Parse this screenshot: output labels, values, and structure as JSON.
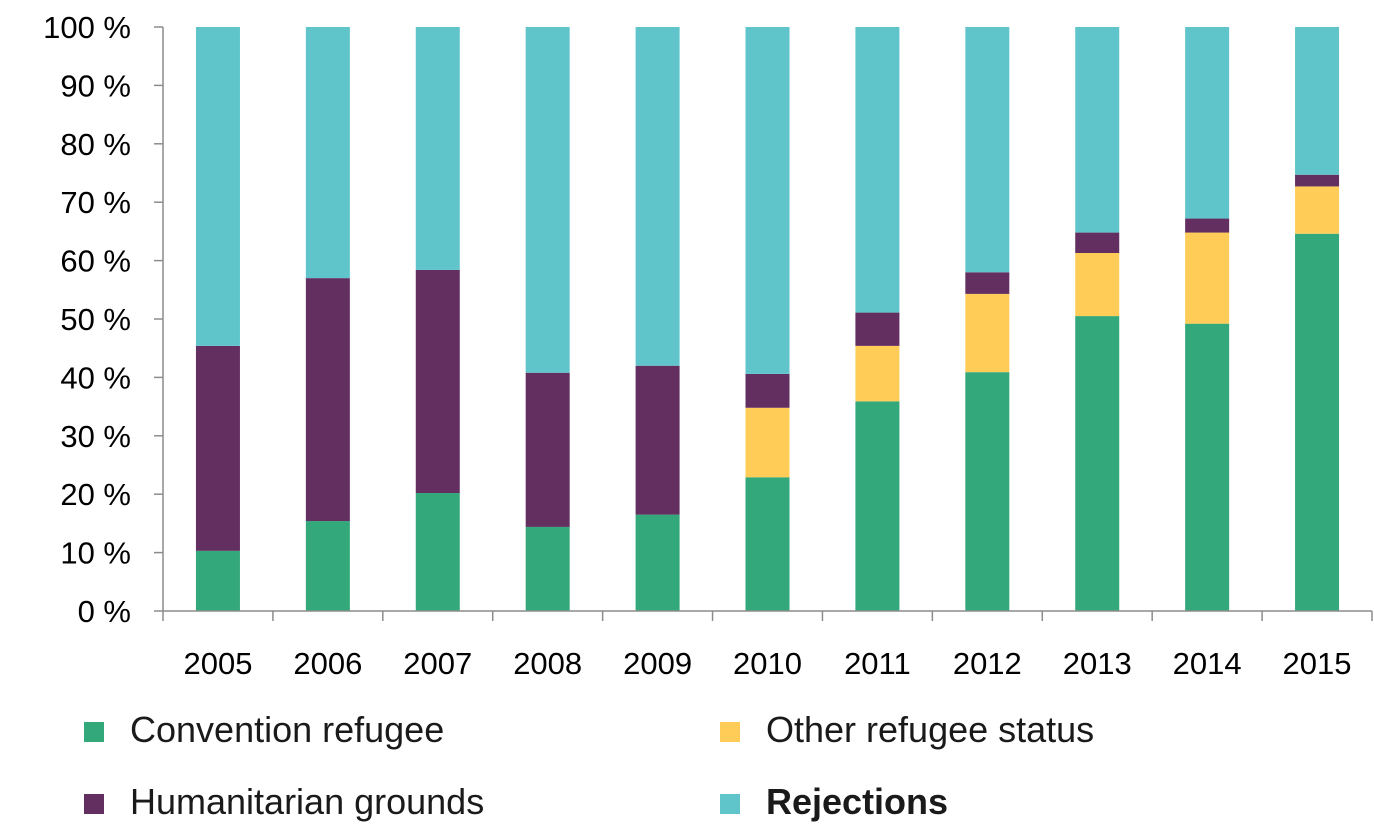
{
  "chart_data": {
    "type": "bar",
    "stacked": true,
    "percent_stacked": true,
    "categories": [
      "2005",
      "2006",
      "2007",
      "2008",
      "2009",
      "2010",
      "2011",
      "2012",
      "2013",
      "2014",
      "2015"
    ],
    "series": [
      {
        "name": "Convention refugee",
        "color": "#33a87a",
        "values": [
          10.3,
          15.4,
          20.2,
          14.4,
          16.5,
          22.9,
          35.9,
          40.9,
          50.5,
          49.2,
          64.6
        ]
      },
      {
        "name": "Other refugee status",
        "color": "#ffcd57",
        "values": [
          0,
          0,
          0,
          0,
          0,
          11.9,
          9.5,
          13.4,
          10.8,
          15.6,
          8.1
        ]
      },
      {
        "name": "Humanitarian grounds",
        "color": "#622f60",
        "values": [
          35.1,
          41.6,
          38.2,
          26.4,
          25.5,
          5.8,
          5.7,
          3.7,
          3.5,
          2.4,
          2.0
        ]
      },
      {
        "name": "Rejections",
        "color": "#5fc5cb",
        "values": [
          54.6,
          43.0,
          41.6,
          59.2,
          58.0,
          59.4,
          48.9,
          42.0,
          35.2,
          32.8,
          25.3
        ]
      }
    ],
    "stack_order": [
      "Convention refugee",
      "Other refugee status",
      "Humanitarian grounds",
      "Rejections"
    ],
    "ylim": [
      0,
      100
    ],
    "yticks": [
      "0 %",
      "10 %",
      "20 %",
      "30 %",
      "40 %",
      "50 %",
      "60 %",
      "70 %",
      "80 %",
      "90 %",
      "100 %"
    ],
    "title": "",
    "xlabel": "",
    "ylabel": "",
    "grid": false,
    "legend_position": "bottom",
    "legend": [
      {
        "name": "Convention refugee",
        "color": "#33a87a",
        "bold": false
      },
      {
        "name": "Other refugee status",
        "color": "#ffcd57",
        "bold": false
      },
      {
        "name": "Humanitarian grounds",
        "color": "#622f60",
        "bold": false
      },
      {
        "name": "Rejections",
        "color": "#5fc5cb",
        "bold": true
      }
    ],
    "axis_color": "#8c8c8c"
  }
}
